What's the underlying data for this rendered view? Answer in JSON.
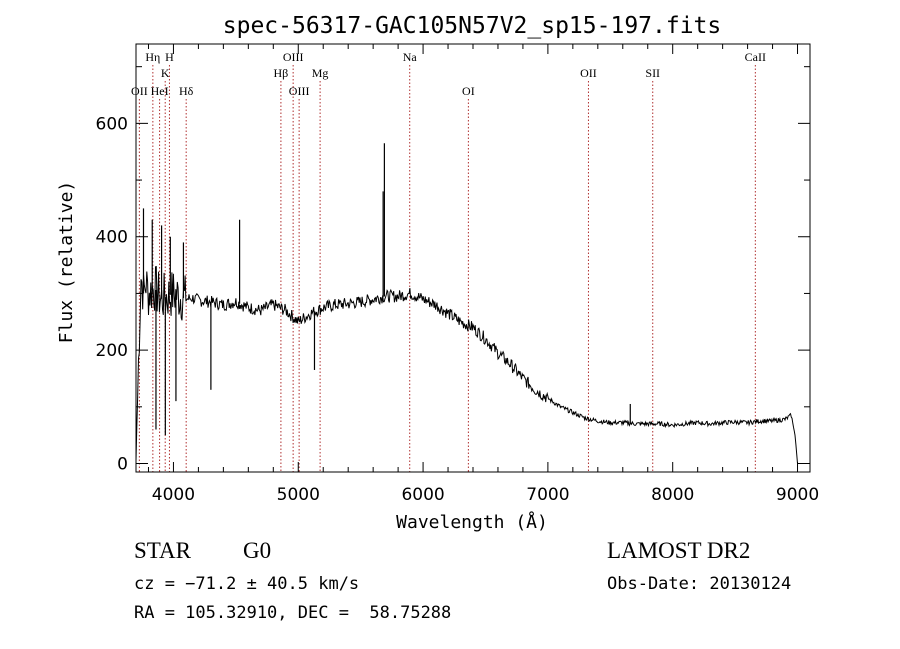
{
  "chart_data": {
    "type": "line",
    "title": "spec-56317-GAC105N57V2_sp15-197.fits",
    "xlabel": "Wavelength (Å)",
    "ylabel": "Flux (relative)",
    "xlim": [
      3700,
      9100
    ],
    "ylim": [
      -15,
      740
    ],
    "xticks": [
      4000,
      5000,
      6000,
      7000,
      8000,
      9000
    ],
    "yticks": [
      0,
      200,
      400,
      600
    ],
    "grid": false,
    "colors": {
      "spectrum": "#000000",
      "lines": "#b03030",
      "axes": "#000000"
    },
    "series": [
      {
        "x": [
          3700,
          3720,
          3740,
          3760,
          3780,
          3800,
          3850,
          3900,
          3950,
          4000,
          4050,
          4100,
          4150,
          4200,
          4300,
          4400,
          4500,
          4600,
          4700,
          4800,
          4900,
          5000,
          5100,
          5200,
          5300,
          5400,
          5500,
          5600,
          5700,
          5800,
          5900,
          6000,
          6100,
          6200,
          6300,
          6400,
          6500,
          6600,
          6700,
          6800,
          6900,
          7000,
          7100,
          7200,
          7300,
          7400,
          7500,
          7600,
          7700,
          7800,
          7900,
          8000,
          8100,
          8200,
          8300,
          8400,
          8500,
          8600,
          8700,
          8800,
          8900,
          8950,
          8980,
          9000
        ],
        "y": [
          5,
          180,
          330,
          300,
          320,
          300,
          310,
          290,
          295,
          300,
          295,
          290,
          292,
          288,
          285,
          280,
          285,
          275,
          270,
          280,
          270,
          250,
          265,
          275,
          280,
          282,
          285,
          290,
          295,
          295,
          300,
          290,
          280,
          265,
          250,
          240,
          220,
          195,
          175,
          150,
          130,
          115,
          100,
          90,
          80,
          75,
          72,
          72,
          70,
          70,
          70,
          68,
          70,
          72,
          70,
          72,
          73,
          72,
          75,
          75,
          78,
          85,
          50,
          0
        ]
      }
    ],
    "spikes": [
      {
        "x": 3760,
        "y": 450
      },
      {
        "x": 3830,
        "y": 430
      },
      {
        "x": 3860,
        "y": 60
      },
      {
        "x": 3905,
        "y": 420
      },
      {
        "x": 3935,
        "y": 50
      },
      {
        "x": 3975,
        "y": 400
      },
      {
        "x": 4020,
        "y": 110
      },
      {
        "x": 4080,
        "y": 390
      },
      {
        "x": 4300,
        "y": 130
      },
      {
        "x": 4530,
        "y": 430
      },
      {
        "x": 5130,
        "y": 165
      },
      {
        "x": 5690,
        "y": 565
      },
      {
        "x": 5680,
        "y": 480
      },
      {
        "x": 7660,
        "y": 105
      }
    ],
    "line_marks": [
      {
        "label": "OII",
        "x": 3727,
        "row": 3
      },
      {
        "label": "Hη",
        "x": 3835,
        "row": 1
      },
      {
        "label": "HeI",
        "x": 3889,
        "row": 3
      },
      {
        "label": "K",
        "x": 3934,
        "row": 2
      },
      {
        "label": "H",
        "x": 3968,
        "row": 1
      },
      {
        "label": "Hδ",
        "x": 4102,
        "row": 3
      },
      {
        "label": "Hβ",
        "x": 4861,
        "row": 2
      },
      {
        "label": "OIII",
        "x": 4959,
        "row": 1
      },
      {
        "label": "OIII",
        "x": 5007,
        "row": 3
      },
      {
        "label": "Mg",
        "x": 5175,
        "row": 2
      },
      {
        "label": "Na",
        "x": 5893,
        "row": 1
      },
      {
        "label": "OI",
        "x": 6363,
        "row": 3
      },
      {
        "label": "OII",
        "x": 7325,
        "row": 2
      },
      {
        "label": "SII",
        "x": 7840,
        "row": 2
      },
      {
        "label": "CaII",
        "x": 8662,
        "row": 1
      }
    ]
  },
  "info": {
    "object_class": "STAR",
    "subclass": "G0",
    "survey": "LAMOST DR2",
    "redshift": "cz = −71.2 ± 40.5 km/s",
    "obs_date": "Obs-Date: 20130124",
    "coords": "RA = 105.32910, DEC =  58.75288"
  }
}
